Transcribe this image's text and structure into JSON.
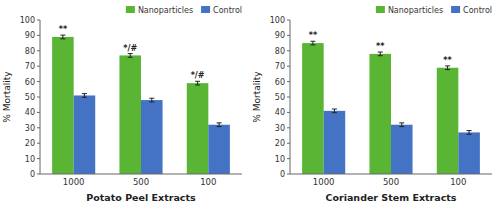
{
  "chart_data": [
    {
      "type": "bar",
      "xlabel": "Potato Peel Extracts",
      "ylabel": "% Mortality",
      "categories": [
        "1000",
        "500",
        "100"
      ],
      "series": [
        {
          "name": "Nanoparticles",
          "color": "#5ab534",
          "values": [
            89,
            77,
            59
          ],
          "errors": [
            1.2,
            1.2,
            1.2
          ]
        },
        {
          "name": "Control",
          "color": "#4472c4",
          "values": [
            51,
            48,
            32
          ],
          "errors": [
            1.2,
            1.2,
            1.2
          ]
        }
      ],
      "annotations": [
        "**",
        "*/#",
        "*/#"
      ],
      "ylim": [
        0,
        100
      ],
      "yticks": [
        0,
        10,
        20,
        30,
        40,
        50,
        60,
        70,
        80,
        90,
        100
      ],
      "grid": false,
      "legend": "upper right"
    },
    {
      "type": "bar",
      "xlabel": "Coriander Stem Extracts",
      "ylabel": "% Mortality",
      "categories": [
        "1000",
        "500",
        "100"
      ],
      "series": [
        {
          "name": "Nanoparticles",
          "color": "#5ab534",
          "values": [
            85,
            78,
            69
          ],
          "errors": [
            1.2,
            1.2,
            1.2
          ]
        },
        {
          "name": "Control",
          "color": "#4472c4",
          "values": [
            41,
            32,
            27
          ],
          "errors": [
            1.2,
            1.2,
            1.2
          ]
        }
      ],
      "annotations": [
        "**",
        "**",
        "**"
      ],
      "ylim": [
        0,
        100
      ],
      "yticks": [
        0,
        10,
        20,
        30,
        40,
        50,
        60,
        70,
        80,
        90,
        100
      ],
      "grid": false,
      "legend": "upper right"
    }
  ]
}
